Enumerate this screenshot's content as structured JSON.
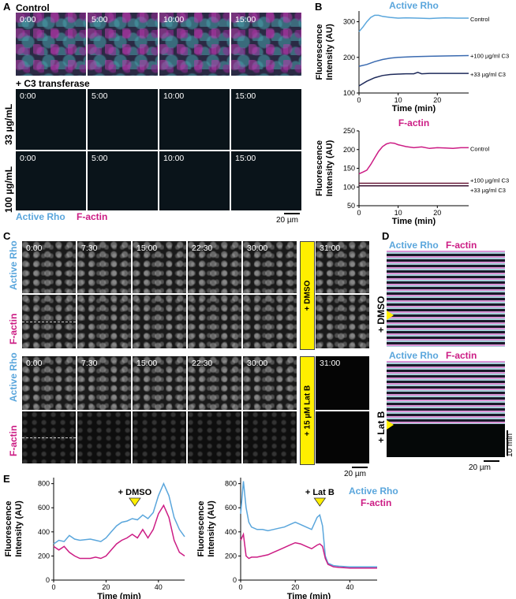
{
  "panels": {
    "A": "A",
    "B": "B",
    "C": "C",
    "D": "D",
    "E": "E"
  },
  "panelA": {
    "control_label": "Control",
    "c3_label": "+ C3 transferase",
    "row33": "33 µg/mL",
    "row100": "100 µg/mL",
    "times": [
      "0:00",
      "5:00",
      "10:00",
      "15:00"
    ],
    "legend_rho": "Active Rho",
    "legend_factin": "F-actin",
    "scalebar": "20 µm"
  },
  "panelC": {
    "row_rho": "Active Rho",
    "row_factin": "F-actin",
    "times": [
      "0:00",
      "7:30",
      "15:00",
      "22:30",
      "30:00"
    ],
    "after_time": "31:00",
    "dmso_label": "+ DMSO",
    "latb_label": "+ 15 µM Lat B",
    "scalebar": "20 µm"
  },
  "panelD": {
    "header_rho": "Active Rho",
    "header_factin": "F-actin",
    "dmso_label": "+ DMSO",
    "latb_label": "+ Lat B",
    "time_scale": "10 min",
    "scalebar": "20 µm"
  },
  "chart_data": [
    {
      "id": "B-rho",
      "type": "line",
      "title": "Active Rho",
      "xlabel": "Time (min)",
      "ylabel": "Fluorescence Intensity (AU)",
      "xlim": [
        0,
        28
      ],
      "ylim": [
        100,
        330
      ],
      "xticks": [
        0,
        10,
        20
      ],
      "yticks": [
        100,
        200,
        300
      ],
      "series": [
        {
          "name": "Control",
          "color": "#5aa6dc",
          "x": [
            0,
            1,
            2,
            3,
            4,
            5,
            6,
            8,
            10,
            12,
            15,
            18,
            20,
            22,
            25,
            28
          ],
          "y": [
            272,
            285,
            300,
            312,
            318,
            318,
            315,
            312,
            310,
            311,
            310,
            309,
            310,
            311,
            310,
            310
          ]
        },
        {
          "name": "+100 µg/ml C3",
          "color": "#3a6ab0",
          "x": [
            0,
            2,
            4,
            6,
            8,
            10,
            14,
            18,
            22,
            28
          ],
          "y": [
            175,
            180,
            188,
            194,
            198,
            200,
            202,
            203,
            204,
            205
          ]
        },
        {
          "name": "+33 µg/ml C3",
          "color": "#1e2a5a",
          "x": [
            0,
            2,
            4,
            6,
            8,
            10,
            12,
            14,
            15,
            16,
            18,
            22,
            28
          ],
          "y": [
            120,
            133,
            143,
            149,
            152,
            153,
            154,
            154,
            158,
            154,
            155,
            155,
            155
          ]
        }
      ]
    },
    {
      "id": "B-factin",
      "type": "line",
      "title": "F-actin",
      "xlabel": "Time (min)",
      "ylabel": "Fluorescence Intensity (AU)",
      "xlim": [
        0,
        28
      ],
      "ylim": [
        50,
        250
      ],
      "xticks": [
        0,
        10,
        20
      ],
      "yticks": [
        50,
        100,
        150,
        200,
        250
      ],
      "series": [
        {
          "name": "Control",
          "color": "#cc1c84",
          "x": [
            0,
            1,
            2,
            3,
            4,
            5,
            6,
            7,
            8,
            9,
            10,
            12,
            14,
            16,
            18,
            20,
            22,
            24,
            26,
            28
          ],
          "y": [
            135,
            140,
            145,
            160,
            178,
            195,
            208,
            215,
            218,
            217,
            213,
            208,
            205,
            207,
            203,
            205,
            204,
            203,
            205,
            205
          ]
        },
        {
          "name": "+100 µg/ml C3",
          "color": "#6a1a3a",
          "x": [
            0,
            28
          ],
          "y": [
            110,
            110
          ]
        },
        {
          "name": "+33 µg/ml C3",
          "color": "#3a1030",
          "x": [
            0,
            28
          ],
          "y": [
            103,
            103
          ]
        }
      ]
    },
    {
      "id": "E-dmso",
      "type": "line",
      "xlabel": "Time (min)",
      "ylabel": "Fluorescence Intensity (AU)",
      "xlim": [
        0,
        50
      ],
      "ylim": [
        0,
        850
      ],
      "xticks": [
        0,
        20,
        40
      ],
      "yticks": [
        0,
        200,
        400,
        600,
        800
      ],
      "annotation": "+ DMSO",
      "annotation_x": 31,
      "series": [
        {
          "name": "Active Rho",
          "color": "#5aa6dc",
          "x": [
            0,
            2,
            4,
            6,
            8,
            10,
            12,
            14,
            16,
            18,
            20,
            22,
            24,
            26,
            28,
            30,
            32,
            34,
            36,
            38,
            40,
            42,
            44,
            46,
            48,
            50
          ],
          "y": [
            300,
            330,
            320,
            370,
            340,
            330,
            335,
            340,
            330,
            320,
            350,
            400,
            450,
            480,
            490,
            510,
            500,
            540,
            510,
            560,
            700,
            800,
            700,
            520,
            420,
            360
          ]
        },
        {
          "name": "F-actin",
          "color": "#cc1c84",
          "x": [
            0,
            2,
            4,
            6,
            8,
            10,
            12,
            14,
            16,
            18,
            20,
            22,
            24,
            26,
            28,
            30,
            32,
            34,
            36,
            38,
            40,
            42,
            44,
            46,
            48,
            50
          ],
          "y": [
            280,
            250,
            280,
            230,
            200,
            180,
            180,
            180,
            190,
            180,
            200,
            250,
            300,
            330,
            350,
            380,
            350,
            420,
            350,
            420,
            550,
            620,
            520,
            330,
            230,
            200
          ]
        }
      ]
    },
    {
      "id": "E-latb",
      "type": "line",
      "xlabel": "Time (min)",
      "ylabel": "Fluorescence Intensity (AU)",
      "xlim": [
        0,
        50
      ],
      "ylim": [
        0,
        850
      ],
      "xticks": [
        0,
        20,
        40
      ],
      "yticks": [
        0,
        200,
        400,
        600,
        800
      ],
      "annotation": "+ Lat B",
      "annotation_x": 29,
      "series": [
        {
          "name": "Active Rho",
          "color": "#5aa6dc",
          "x": [
            0,
            1,
            2,
            3,
            4,
            6,
            8,
            10,
            12,
            14,
            16,
            18,
            20,
            22,
            24,
            26,
            28,
            29,
            30,
            31,
            32,
            34,
            36,
            40,
            44,
            50
          ],
          "y": [
            550,
            820,
            600,
            480,
            440,
            420,
            420,
            410,
            420,
            430,
            440,
            460,
            480,
            460,
            440,
            420,
            520,
            540,
            450,
            200,
            140,
            120,
            115,
            110,
            110,
            110
          ]
        },
        {
          "name": "F-actin",
          "color": "#cc1c84",
          "x": [
            0,
            1,
            2,
            3,
            4,
            6,
            8,
            10,
            12,
            14,
            16,
            18,
            20,
            22,
            24,
            26,
            28,
            29,
            30,
            31,
            32,
            34,
            36,
            40,
            44,
            50
          ],
          "y": [
            330,
            380,
            200,
            180,
            190,
            190,
            200,
            210,
            230,
            250,
            270,
            290,
            310,
            300,
            280,
            260,
            290,
            300,
            280,
            180,
            130,
            110,
            105,
            100,
            100,
            100
          ]
        }
      ]
    }
  ]
}
